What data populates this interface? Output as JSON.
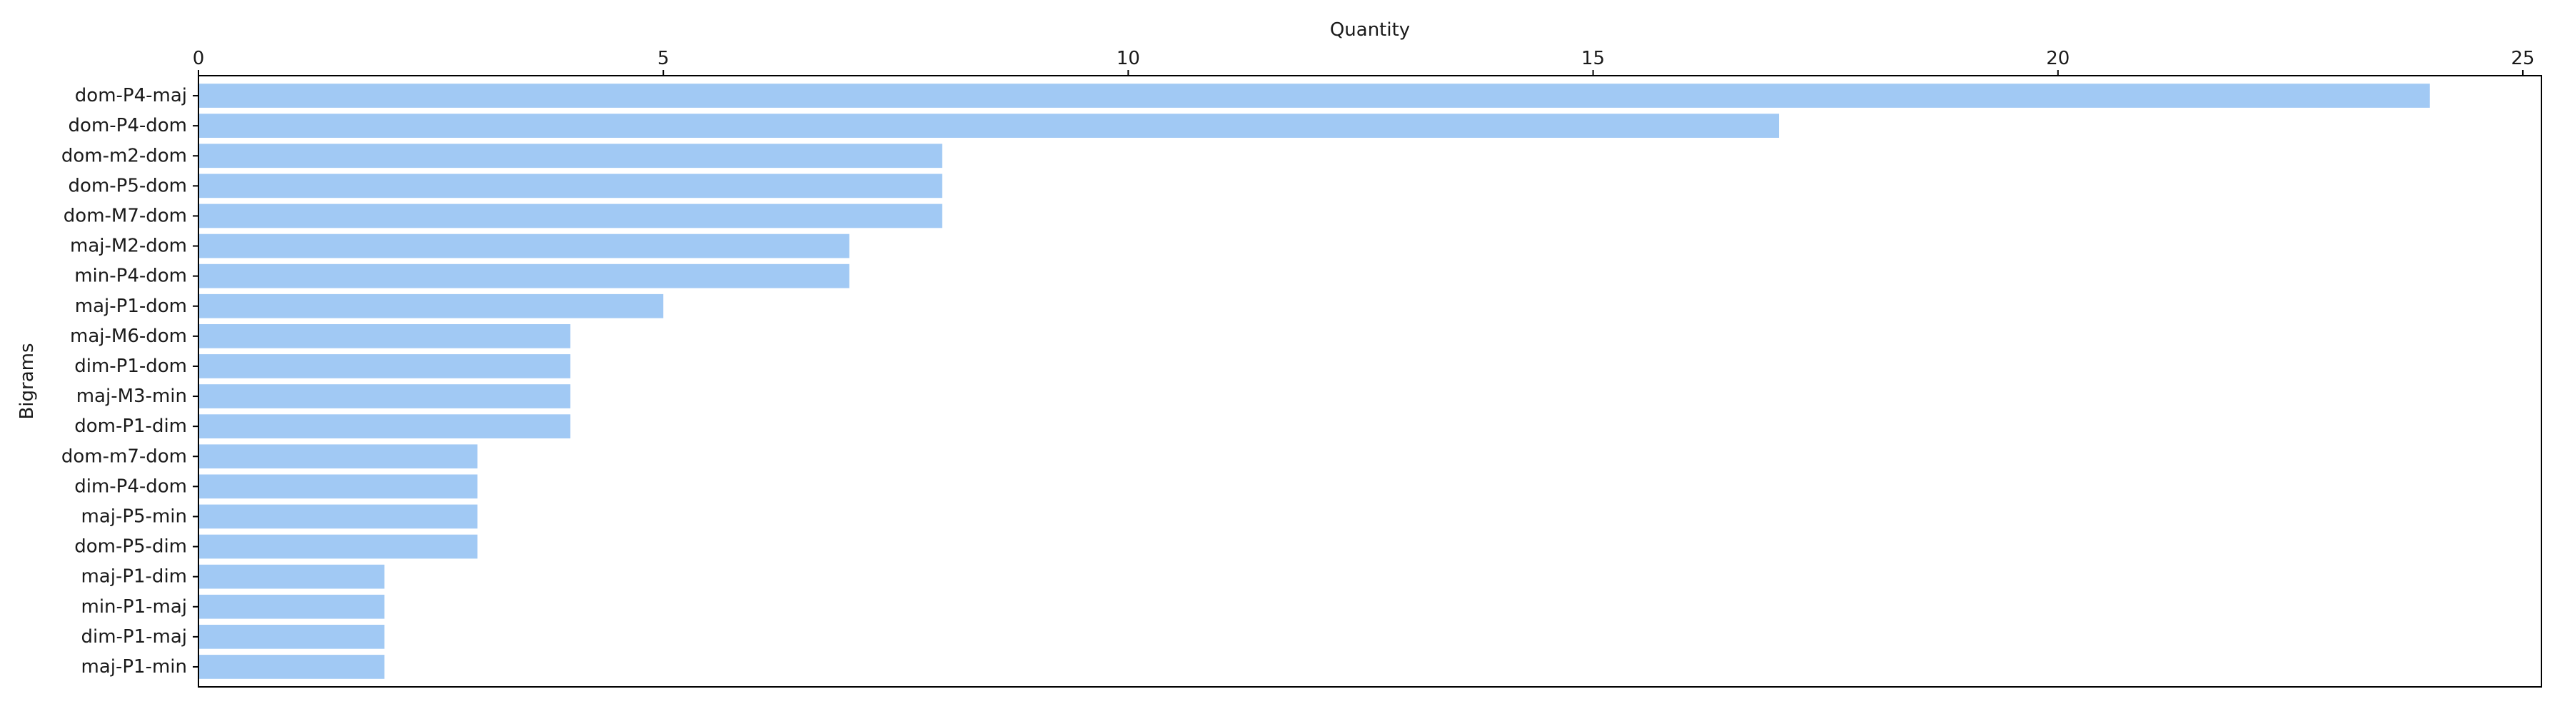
{
  "chart_data": {
    "type": "bar",
    "orientation": "horizontal",
    "xlabel": "Quantity",
    "ylabel": "Bigrams",
    "xaxis_position": "top",
    "xlim": [
      0,
      25.2
    ],
    "xticks": [
      0,
      5,
      10,
      15,
      20,
      25
    ],
    "grid": false,
    "bar_color": "#a1c9f4",
    "categories": [
      "dom-P4-maj",
      "dom-P4-dom",
      "dom-m2-dom",
      "dom-P5-dom",
      "dom-M7-dom",
      "maj-M2-dom",
      "min-P4-dom",
      "maj-P1-dom",
      "maj-M6-dom",
      "dim-P1-dom",
      "maj-M3-min",
      "dom-P1-dim",
      "dom-m7-dom",
      "dim-P4-dom",
      "maj-P5-min",
      "dom-P5-dim",
      "maj-P1-dim",
      "min-P1-maj",
      "dim-P1-maj",
      "maj-P1-min"
    ],
    "values": [
      24,
      17,
      8,
      8,
      8,
      7,
      7,
      5,
      4,
      4,
      4,
      4,
      3,
      3,
      3,
      3,
      2,
      2,
      2,
      2
    ]
  }
}
